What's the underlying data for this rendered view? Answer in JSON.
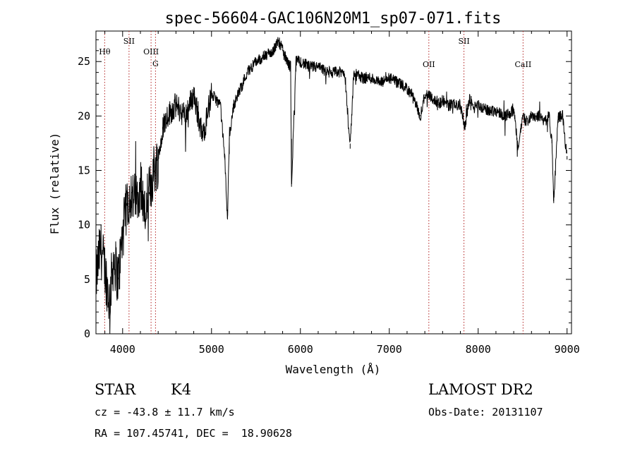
{
  "chart_data": {
    "type": "line",
    "title": "spec-56604-GAC106N20M1_sp07-071.fits",
    "xlabel": "Wavelength (Å)",
    "ylabel": "Flux (relative)",
    "xlim": [
      3700,
      9050
    ],
    "ylim": [
      0,
      27.8
    ],
    "xticks": [
      4000,
      5000,
      6000,
      7000,
      8000,
      9000
    ],
    "yticks": [
      0,
      5,
      10,
      15,
      20,
      25
    ],
    "grid": false,
    "spectral_lines": [
      {
        "name": "Hθ",
        "x": 3798,
        "label_row": "mid"
      },
      {
        "name": "SII",
        "x": 4072,
        "label_row": "top"
      },
      {
        "name": "OIII",
        "x": 4320,
        "label_row": "mid"
      },
      {
        "name": "G",
        "x": 4370,
        "label_row": "lower"
      },
      {
        "name": "OII",
        "x": 7445,
        "label_row": "low"
      },
      {
        "name": "SII",
        "x": 7840,
        "label_row": "top"
      },
      {
        "name": "CaII",
        "x": 8505,
        "label_row": "low"
      }
    ],
    "series": [
      {
        "x": [
          3700,
          3750,
          3800,
          3850,
          3900,
          3950,
          4000,
          4050,
          4100,
          4150,
          4200,
          4250,
          4300,
          4350,
          4400,
          4450,
          4500,
          4600,
          4700,
          4800,
          4900,
          5000,
          5100,
          5150,
          5180,
          5200,
          5250,
          5300,
          5400,
          5500,
          5600,
          5700,
          5750,
          5800,
          5850,
          5890,
          5900,
          5950,
          6000,
          6100,
          6200,
          6300,
          6400,
          6500,
          6560,
          6600,
          6700,
          6800,
          6900,
          7000,
          7100,
          7200,
          7250,
          7300,
          7350,
          7400,
          7450,
          7500,
          7550,
          7600,
          7650,
          7700,
          7750,
          7800,
          7850,
          7900,
          7950,
          8000,
          8100,
          8200,
          8300,
          8400,
          8450,
          8500,
          8550,
          8600,
          8650,
          8700,
          8750,
          8800,
          8830,
          8850,
          8900,
          8950,
          9000
        ],
        "y": [
          5,
          8,
          6,
          3,
          7,
          5,
          9,
          12,
          13,
          12,
          14,
          11,
          13,
          15,
          16,
          19,
          20,
          21,
          20,
          22,
          18,
          22,
          21,
          16,
          10.5,
          18,
          21,
          22,
          24,
          25,
          25.5,
          26,
          27,
          26,
          25,
          24.5,
          13.5,
          25,
          25,
          24.5,
          24.5,
          24,
          24,
          24,
          17,
          24,
          23.5,
          23.5,
          23,
          23.5,
          23,
          22.5,
          22,
          21,
          20,
          22,
          22,
          21.5,
          21,
          21.5,
          21,
          21,
          21,
          21,
          19,
          21.5,
          21,
          21,
          20.5,
          20.5,
          20,
          20.5,
          17,
          20,
          19.5,
          20,
          20,
          20,
          19.5,
          20,
          17.5,
          12,
          20,
          20,
          16
        ]
      }
    ]
  },
  "info": {
    "class": "STAR",
    "subclass": "K4",
    "survey": "LAMOST DR2",
    "cz": "cz = -43.8 ± 11.7 km/s",
    "obs_date": "Obs-Date: 20131107",
    "radec": "RA = 107.45741, DEC =  18.90628"
  }
}
